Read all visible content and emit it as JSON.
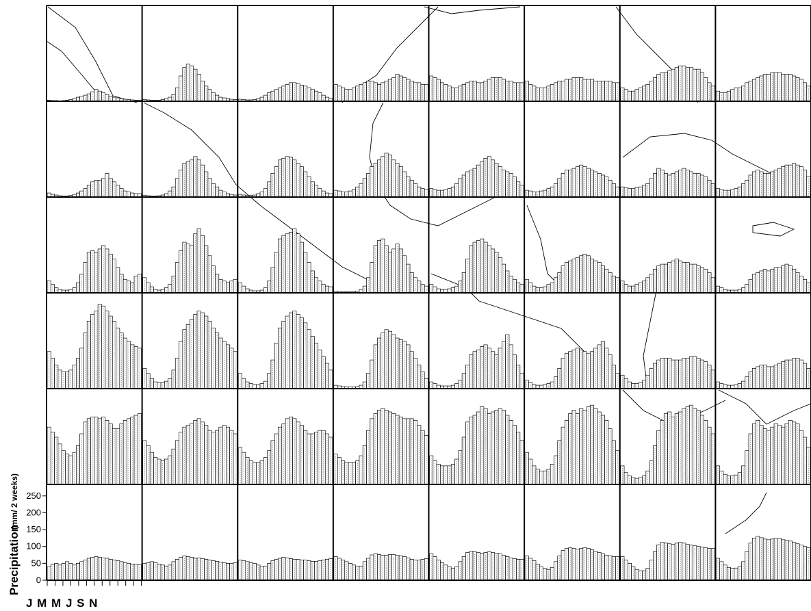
{
  "chart_data": {
    "type": "bar",
    "description_of_layout": "6 rows x 8 columns grid of small panels; each panel a biweekly precipitation climatology (26 bars per year)",
    "ylabel": "Precipitation",
    "ylabel_units": "(mm/ 2 weeks)",
    "ylim": [
      0,
      280
    ],
    "yticks": [
      "250",
      "200",
      "150",
      "100",
      "50",
      "0"
    ],
    "ytick_values": [
      250,
      200,
      150,
      100,
      50,
      0
    ],
    "xlabel_months": "J M M J S N",
    "bars_per_panel": 26,
    "grid_rows": 6,
    "grid_cols": 8,
    "panels": [
      [
        [
          3,
          2,
          2,
          1,
          2,
          3,
          5,
          8,
          12,
          15,
          18,
          22,
          28,
          35,
          30,
          25,
          20,
          15,
          12,
          10,
          8,
          6,
          5,
          4,
          3,
          3
        ],
        [
          5,
          4,
          3,
          3,
          3,
          5,
          8,
          12,
          20,
          40,
          75,
          100,
          110,
          105,
          95,
          80,
          60,
          45,
          35,
          25,
          18,
          12,
          10,
          8,
          6,
          5
        ],
        [
          6,
          5,
          4,
          4,
          5,
          8,
          12,
          18,
          25,
          30,
          35,
          40,
          45,
          50,
          55,
          55,
          52,
          48,
          45,
          40,
          35,
          30,
          25,
          18,
          12,
          8
        ],
        [
          50,
          45,
          40,
          35,
          35,
          40,
          45,
          50,
          55,
          60,
          60,
          55,
          50,
          55,
          60,
          65,
          70,
          80,
          75,
          70,
          65,
          60,
          55,
          55,
          50,
          50
        ],
        [
          75,
          70,
          65,
          55,
          50,
          45,
          40,
          40,
          45,
          50,
          55,
          60,
          60,
          55,
          55,
          60,
          65,
          70,
          70,
          70,
          65,
          60,
          60,
          55,
          55,
          55
        ],
        [
          60,
          50,
          45,
          40,
          40,
          40,
          45,
          50,
          55,
          60,
          60,
          65,
          65,
          70,
          70,
          70,
          65,
          65,
          65,
          60,
          60,
          60,
          60,
          60,
          55,
          55
        ],
        [
          40,
          35,
          30,
          30,
          35,
          40,
          45,
          50,
          60,
          70,
          80,
          85,
          85,
          90,
          95,
          100,
          105,
          105,
          100,
          100,
          95,
          95,
          85,
          70,
          55,
          45
        ],
        [
          30,
          25,
          25,
          30,
          35,
          40,
          40,
          45,
          55,
          60,
          65,
          70,
          75,
          80,
          80,
          85,
          85,
          85,
          80,
          80,
          80,
          75,
          70,
          65,
          55,
          45
        ]
      ],
      [
        [
          12,
          8,
          6,
          4,
          3,
          3,
          5,
          8,
          12,
          18,
          25,
          35,
          45,
          50,
          50,
          55,
          70,
          55,
          45,
          35,
          25,
          18,
          15,
          12,
          10,
          10
        ],
        [
          5,
          4,
          3,
          3,
          4,
          6,
          10,
          18,
          30,
          55,
          80,
          100,
          105,
          110,
          120,
          110,
          95,
          75,
          55,
          40,
          30,
          20,
          15,
          10,
          8,
          6
        ],
        [
          8,
          6,
          5,
          5,
          6,
          10,
          15,
          25,
          45,
          70,
          90,
          110,
          115,
          120,
          118,
          110,
          100,
          90,
          75,
          60,
          45,
          35,
          25,
          18,
          12,
          10
        ],
        [
          20,
          18,
          15,
          15,
          18,
          22,
          30,
          40,
          55,
          70,
          90,
          100,
          110,
          120,
          130,
          125,
          110,
          100,
          90,
          75,
          60,
          50,
          40,
          30,
          25,
          22
        ],
        [
          25,
          22,
          20,
          20,
          22,
          25,
          30,
          40,
          55,
          65,
          75,
          80,
          85,
          95,
          105,
          115,
          120,
          110,
          100,
          90,
          80,
          75,
          70,
          60,
          45,
          35
        ],
        [
          20,
          18,
          15,
          15,
          18,
          20,
          25,
          30,
          40,
          55,
          70,
          80,
          80,
          85,
          90,
          95,
          90,
          85,
          80,
          75,
          70,
          65,
          60,
          50,
          40,
          30
        ],
        [
          30,
          28,
          25,
          25,
          28,
          30,
          35,
          40,
          55,
          70,
          85,
          80,
          70,
          65,
          70,
          75,
          80,
          85,
          80,
          75,
          70,
          70,
          65,
          60,
          50,
          40
        ],
        [
          25,
          22,
          20,
          20,
          22,
          25,
          30,
          40,
          50,
          65,
          75,
          80,
          75,
          70,
          70,
          75,
          80,
          85,
          90,
          95,
          95,
          100,
          95,
          90,
          80,
          60
        ]
      ],
      [
        [
          35,
          25,
          15,
          10,
          8,
          8,
          10,
          15,
          30,
          55,
          90,
          120,
          125,
          120,
          130,
          140,
          130,
          115,
          100,
          75,
          55,
          40,
          35,
          30,
          50,
          55
        ],
        [
          45,
          30,
          18,
          10,
          8,
          10,
          15,
          25,
          50,
          90,
          125,
          150,
          145,
          140,
          175,
          190,
          170,
          140,
          110,
          80,
          55,
          40,
          35,
          30,
          35,
          40
        ],
        [
          30,
          20,
          12,
          8,
          6,
          6,
          8,
          15,
          35,
          75,
          120,
          160,
          170,
          175,
          180,
          190,
          175,
          150,
          120,
          90,
          65,
          45,
          35,
          25,
          20,
          18
        ],
        [
          5,
          4,
          3,
          3,
          3,
          3,
          5,
          10,
          20,
          45,
          90,
          140,
          155,
          160,
          140,
          120,
          130,
          145,
          130,
          110,
          85,
          60,
          45,
          35,
          25,
          20
        ],
        [
          25,
          18,
          12,
          10,
          10,
          12,
          15,
          20,
          35,
          60,
          100,
          140,
          150,
          155,
          160,
          150,
          140,
          130,
          120,
          105,
          85,
          65,
          50,
          40,
          30,
          25
        ],
        [
          40,
          30,
          20,
          15,
          15,
          18,
          25,
          30,
          45,
          60,
          80,
          90,
          95,
          100,
          105,
          110,
          115,
          110,
          100,
          95,
          90,
          80,
          70,
          60,
          50,
          45
        ],
        [
          35,
          25,
          20,
          20,
          25,
          30,
          35,
          45,
          55,
          70,
          80,
          85,
          85,
          90,
          95,
          100,
          95,
          90,
          90,
          85,
          85,
          80,
          75,
          70,
          60,
          45
        ],
        [
          20,
          15,
          10,
          8,
          8,
          8,
          10,
          15,
          25,
          40,
          55,
          60,
          65,
          70,
          65,
          70,
          75,
          75,
          80,
          85,
          80,
          70,
          60,
          50,
          40,
          30
        ]
      ],
      [
        [
          110,
          90,
          70,
          55,
          50,
          50,
          55,
          70,
          90,
          120,
          165,
          200,
          220,
          230,
          250,
          245,
          230,
          215,
          200,
          180,
          165,
          150,
          140,
          130,
          125,
          120
        ],
        [
          60,
          45,
          30,
          20,
          18,
          18,
          22,
          30,
          55,
          90,
          140,
          175,
          190,
          205,
          220,
          230,
          225,
          215,
          200,
          180,
          165,
          150,
          140,
          130,
          120,
          110
        ],
        [
          45,
          30,
          20,
          15,
          12,
          12,
          15,
          22,
          45,
          85,
          135,
          180,
          200,
          215,
          225,
          230,
          220,
          210,
          195,
          175,
          155,
          135,
          115,
          95,
          75,
          55
        ],
        [
          10,
          8,
          6,
          5,
          5,
          5,
          6,
          10,
          20,
          45,
          85,
          130,
          150,
          165,
          175,
          170,
          160,
          150,
          145,
          140,
          130,
          110,
          90,
          70,
          50,
          30
        ],
        [
          20,
          15,
          10,
          8,
          8,
          8,
          10,
          15,
          25,
          45,
          70,
          100,
          110,
          115,
          125,
          130,
          120,
          110,
          100,
          120,
          140,
          160,
          130,
          100,
          70,
          45
        ],
        [
          25,
          18,
          12,
          10,
          10,
          12,
          15,
          20,
          35,
          60,
          90,
          105,
          110,
          115,
          120,
          115,
          110,
          105,
          110,
          120,
          130,
          140,
          120,
          100,
          70,
          45
        ],
        [
          40,
          30,
          20,
          15,
          15,
          18,
          25,
          40,
          60,
          75,
          85,
          90,
          90,
          90,
          85,
          85,
          85,
          90,
          90,
          95,
          95,
          90,
          85,
          80,
          70,
          55
        ],
        [
          20,
          15,
          12,
          10,
          10,
          12,
          15,
          22,
          35,
          50,
          60,
          65,
          70,
          70,
          65,
          65,
          70,
          75,
          80,
          85,
          85,
          90,
          90,
          85,
          75,
          60
        ]
      ],
      [
        [
          170,
          155,
          140,
          120,
          100,
          90,
          85,
          95,
          115,
          150,
          185,
          195,
          200,
          200,
          195,
          200,
          190,
          180,
          165,
          165,
          180,
          190,
          195,
          200,
          205,
          210
        ],
        [
          130,
          115,
          95,
          80,
          75,
          70,
          75,
          85,
          105,
          130,
          155,
          170,
          175,
          180,
          190,
          195,
          185,
          175,
          160,
          155,
          160,
          170,
          175,
          170,
          160,
          150
        ],
        [
          110,
          95,
          80,
          70,
          65,
          65,
          70,
          80,
          100,
          130,
          150,
          170,
          180,
          195,
          200,
          195,
          185,
          175,
          160,
          150,
          150,
          155,
          160,
          160,
          150,
          140
        ],
        [
          90,
          80,
          70,
          65,
          65,
          65,
          70,
          85,
          115,
          160,
          195,
          210,
          220,
          225,
          220,
          215,
          210,
          205,
          200,
          195,
          195,
          195,
          190,
          175,
          160,
          145
        ],
        [
          85,
          70,
          60,
          55,
          55,
          55,
          60,
          75,
          100,
          140,
          185,
          200,
          205,
          215,
          230,
          225,
          210,
          215,
          220,
          225,
          220,
          205,
          190,
          175,
          155,
          130
        ],
        [
          95,
          75,
          55,
          45,
          40,
          40,
          45,
          60,
          85,
          130,
          170,
          190,
          210,
          220,
          210,
          225,
          220,
          230,
          235,
          225,
          215,
          205,
          190,
          165,
          130,
          100
        ],
        [
          55,
          35,
          25,
          20,
          18,
          20,
          25,
          40,
          70,
          115,
          160,
          190,
          210,
          215,
          200,
          210,
          215,
          225,
          230,
          235,
          225,
          220,
          205,
          190,
          170,
          150
        ],
        [
          55,
          40,
          30,
          25,
          25,
          28,
          35,
          55,
          100,
          150,
          180,
          190,
          175,
          165,
          160,
          170,
          180,
          175,
          170,
          180,
          190,
          185,
          180,
          160,
          140,
          110
        ]
      ],
      [
        [
          40,
          48,
          50,
          45,
          50,
          55,
          50,
          45,
          50,
          55,
          60,
          65,
          68,
          70,
          68,
          66,
          65,
          62,
          60,
          58,
          55,
          52,
          50,
          48,
          48,
          46
        ],
        [
          50,
          52,
          55,
          52,
          48,
          45,
          42,
          45,
          55,
          62,
          68,
          72,
          70,
          68,
          65,
          66,
          64,
          62,
          60,
          58,
          56,
          54,
          52,
          50,
          50,
          52
        ],
        [
          60,
          58,
          55,
          52,
          50,
          45,
          40,
          42,
          50,
          58,
          62,
          65,
          68,
          66,
          64,
          62,
          62,
          60,
          60,
          58,
          56,
          56,
          58,
          60,
          62,
          64
        ],
        [
          70,
          65,
          60,
          55,
          50,
          45,
          40,
          42,
          55,
          65,
          75,
          78,
          76,
          74,
          74,
          76,
          76,
          74,
          72,
          70,
          66,
          62,
          60,
          60,
          62,
          64
        ],
        [
          78,
          70,
          60,
          52,
          45,
          40,
          35,
          40,
          55,
          70,
          82,
          86,
          84,
          82,
          80,
          82,
          84,
          82,
          80,
          78,
          74,
          70,
          66,
          64,
          62,
          62
        ],
        [
          72,
          65,
          58,
          48,
          40,
          35,
          32,
          38,
          55,
          72,
          88,
          94,
          96,
          94,
          92,
          94,
          96,
          94,
          90,
          86,
          82,
          78,
          74,
          72,
          70,
          70
        ],
        [
          70,
          60,
          50,
          40,
          32,
          28,
          28,
          35,
          60,
          85,
          105,
          112,
          110,
          108,
          106,
          110,
          112,
          110,
          106,
          104,
          102,
          100,
          98,
          96,
          94,
          94
        ],
        [
          65,
          55,
          45,
          38,
          35,
          36,
          40,
          55,
          85,
          110,
          125,
          130,
          126,
          122,
          120,
          122,
          124,
          124,
          120,
          118,
          116,
          112,
          108,
          104,
          100,
          96
        ]
      ]
    ]
  },
  "map_colors": {
    "coastline": "#000000",
    "bar_fill": "#ffffff",
    "bar_stroke": "#000000",
    "bar_inner": "#9a9a9a"
  }
}
